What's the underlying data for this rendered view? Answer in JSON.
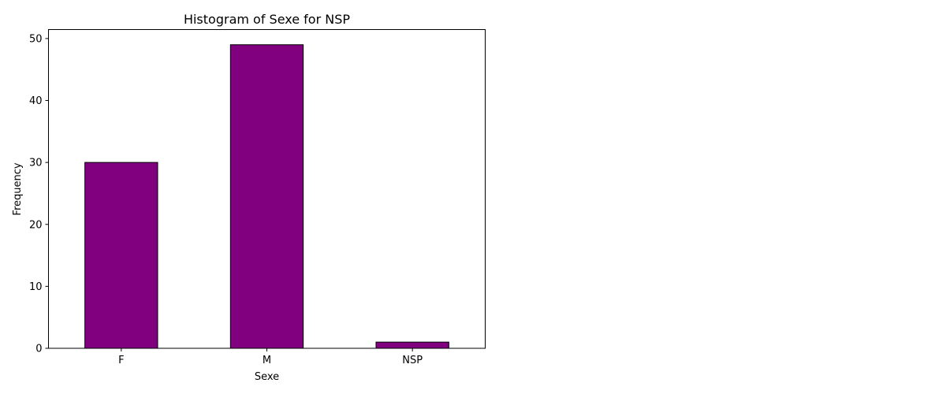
{
  "chart_data": {
    "type": "bar",
    "title": "Histogram of Sexe for NSP",
    "xlabel": "Sexe",
    "ylabel": "Frequency",
    "categories": [
      "F",
      "M",
      "NSP"
    ],
    "values": [
      30,
      49,
      1
    ],
    "ylim": [
      0,
      51.45
    ],
    "yticks": [
      0,
      10,
      20,
      30,
      40,
      50
    ],
    "grid": false,
    "legend": "none",
    "bar_color": "#800080",
    "bar_edge_color": "#000000"
  }
}
